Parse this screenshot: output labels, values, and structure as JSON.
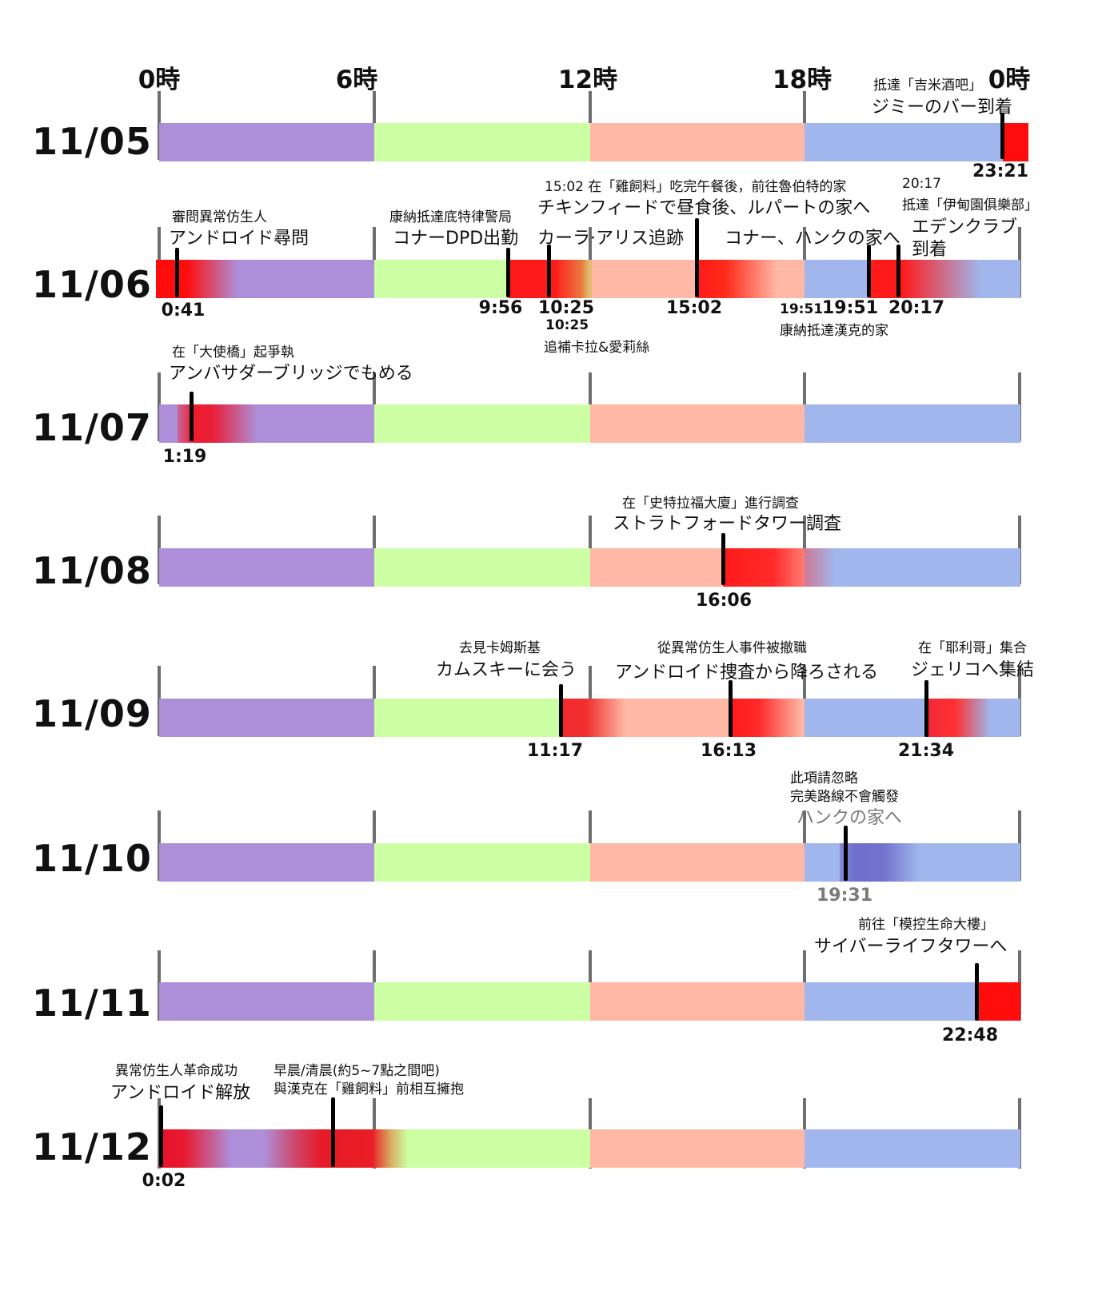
{
  "hour_labels": [
    "0時",
    "6時",
    "12時",
    "18時",
    "0時"
  ],
  "dates": [
    "11/05",
    "11/06",
    "11/07",
    "11/08",
    "11/09",
    "11/10",
    "11/11",
    "11/12"
  ],
  "colors": {
    "night": "#ad8fd9",
    "morning": "#ccffa3",
    "afternoon": "#ffb8a6",
    "evening": "#a0b6ec",
    "event": "#ff1a1a",
    "special": "#6f6fcc",
    "marker": "#000000"
  },
  "events": {
    "e1105_2321": {
      "time": "23:21",
      "zh": "抵達「吉米酒吧」",
      "ja": "ジミーのバー到着"
    },
    "e1106_0041": {
      "time": "0:41",
      "zh": "審問異常仿生人",
      "ja": "アンドロイド尋問"
    },
    "e1106_0956": {
      "time": "9:56",
      "zh": "康納抵達底特律警局",
      "ja": "コナーDPD出勤"
    },
    "e1106_1025": {
      "time": "10:25",
      "time_small": "10:25",
      "zh": "追補卡拉&愛莉絲",
      "ja": "カーラ·アリス追跡"
    },
    "e1106_1502": {
      "time": "15:02",
      "zh": "15:02 在「雞飼料」吃完午餐後，前往魯伯特的家",
      "ja": "チキンフィードで昼食後、ルパートの家へ"
    },
    "e1106_1951": {
      "time": "19:51",
      "time_small": "19:51",
      "zh": "康納抵達漢克的家",
      "ja": "コナー、ハンクの家へ"
    },
    "e1106_2017": {
      "time": "20:17",
      "time_small": "20:17",
      "zh": "抵達「伊甸園俱樂部」",
      "ja_line1": "エデンクラブ",
      "ja_line2": "到着"
    },
    "e1107_0119": {
      "time": "1:19",
      "zh": "在「大使橋」起爭執",
      "ja": "アンバサダーブリッジでもめる"
    },
    "e1108_1606": {
      "time": "16:06",
      "zh": "在「史特拉福大廈」進行調查",
      "ja": "ストラトフォードタワー調査"
    },
    "e1109_1117": {
      "time": "11:17",
      "zh": "去見卡姆斯基",
      "ja": "カムスキーに会う"
    },
    "e1109_1613": {
      "time": "16:13",
      "zh": "從異常仿生人事件被撤職",
      "ja": "アンドロイド捜査から降ろされる"
    },
    "e1109_2134": {
      "time": "21:34",
      "zh": "在「耶利哥」集合",
      "ja": "ジェリコへ集結"
    },
    "e1110_1931": {
      "time": "19:31",
      "zh_line1": "此項請忽略",
      "zh_line2": "完美路線不會觸發",
      "ja": "ハンクの家へ"
    },
    "e1111_2248": {
      "time": "22:48",
      "zh": "前往「模控生命大樓」",
      "ja": "サイバーライフタワーへ"
    },
    "e1112_0002": {
      "time": "0:02",
      "zh": "異常仿生人革命成功",
      "ja": "アンドロイド解放"
    },
    "e1112_dawn": {
      "zh_line1": "早晨/清晨(約5~7點之間吧)",
      "zh_line2": "與漢克在「雞飼料」前相互擁抱"
    }
  }
}
